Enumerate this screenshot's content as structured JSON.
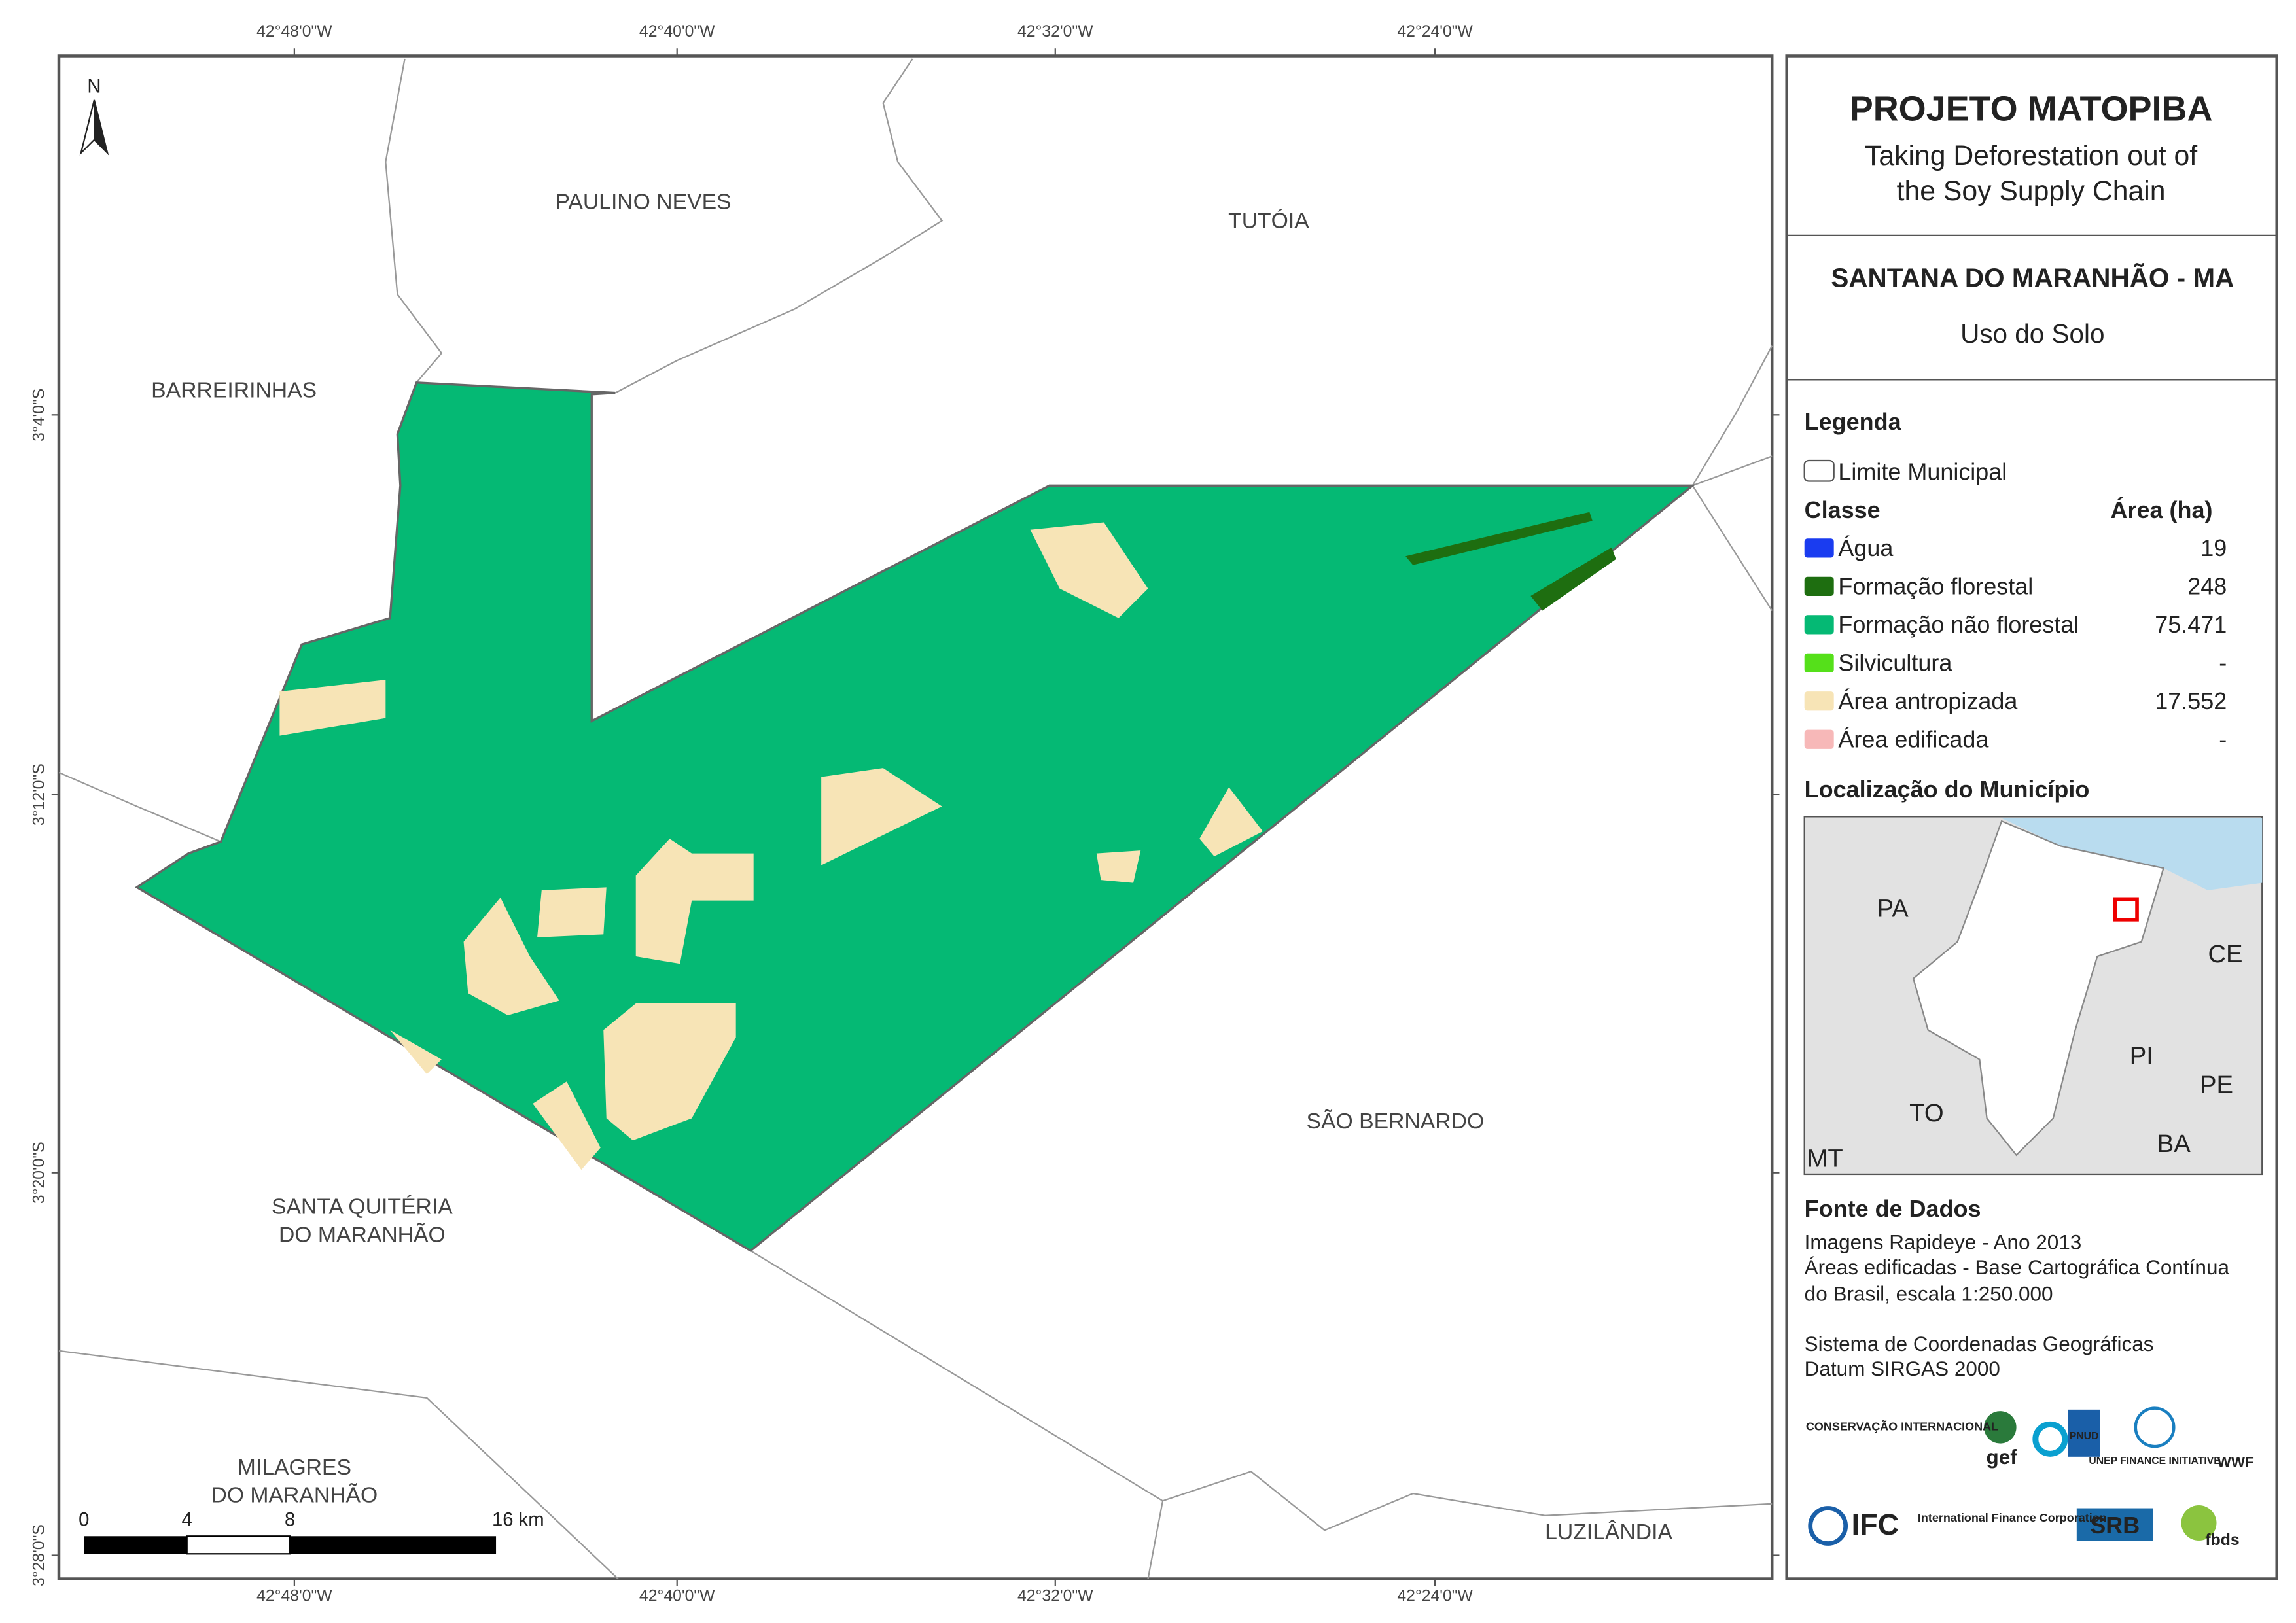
{
  "header": {
    "title": "PROJETO MATOPIBA",
    "subtitle_lines": [
      "Taking Deforestation out of",
      "the Soy Supply Chain"
    ]
  },
  "map_title": {
    "name": "SANTANA DO MARANHÃO - MA",
    "theme": "Uso do Solo"
  },
  "legend": {
    "title": "Legenda",
    "boundary": "Limite Municipal",
    "class_header": "Classe",
    "area_header": "Área (ha)",
    "classes": [
      {
        "name": "Água",
        "area": "19",
        "color": "#1a3cf0"
      },
      {
        "name": "Formação florestal",
        "area": "248",
        "color": "#1e6e10"
      },
      {
        "name": "Formação não florestal",
        "area": "75.471",
        "color": "#05b974"
      },
      {
        "name": "Silvicultura",
        "area": "-",
        "color": "#55e01a"
      },
      {
        "name": "Área antropizada",
        "area": "17.552",
        "color": "#f7e4b6"
      },
      {
        "name": "Área edificada",
        "area": "-",
        "color": "#f7b8b8"
      }
    ]
  },
  "location": {
    "title": "Localização do Município",
    "labels": [
      "PA",
      "CE",
      "PI",
      "PE",
      "TO",
      "BA",
      "MT"
    ]
  },
  "sources": {
    "title": "Fonte de Dados",
    "lines": [
      "Imagens Rapideye - Ano 2013",
      "Áreas edificadas - Base Cartográfica Contínua",
      "do Brasil, escala 1:250.000",
      "Sistema de Coordenadas Geográficas",
      "Datum SIRGAS 2000"
    ]
  },
  "map": {
    "north": "N",
    "x_ticks": [
      "42°48'0\"W",
      "42°40'0\"W",
      "42°32'0\"W",
      "42°24'0\"W"
    ],
    "y_ticks": [
      "3°4'0\"S",
      "3°12'0\"S",
      "3°20'0\"S",
      "3°28'0\"S"
    ],
    "places": [
      {
        "lines": [
          "PAULINO NEVES"
        ]
      },
      {
        "lines": [
          "TUTÓIA"
        ]
      },
      {
        "lines": [
          "BARREIRINHAS"
        ]
      },
      {
        "lines": [
          "SÃO BERNARDO"
        ]
      },
      {
        "lines": [
          "SANTA QUITÉRIA",
          "DO MARANHÃO"
        ]
      },
      {
        "lines": [
          "MILAGRES",
          "DO MARANHÃO"
        ]
      },
      {
        "lines": [
          "LUZILÂNDIA"
        ]
      }
    ],
    "scale_labels": [
      "0",
      "4",
      "8",
      "16 km"
    ]
  },
  "logos": [
    "CONSERVAÇÃO INTERNACIONAL",
    "gef",
    "PNUD",
    "UNEP FINANCE INITIATIVE",
    "WWF",
    "IFC",
    "International Finance Corporation",
    "SRB",
    "fbds"
  ]
}
